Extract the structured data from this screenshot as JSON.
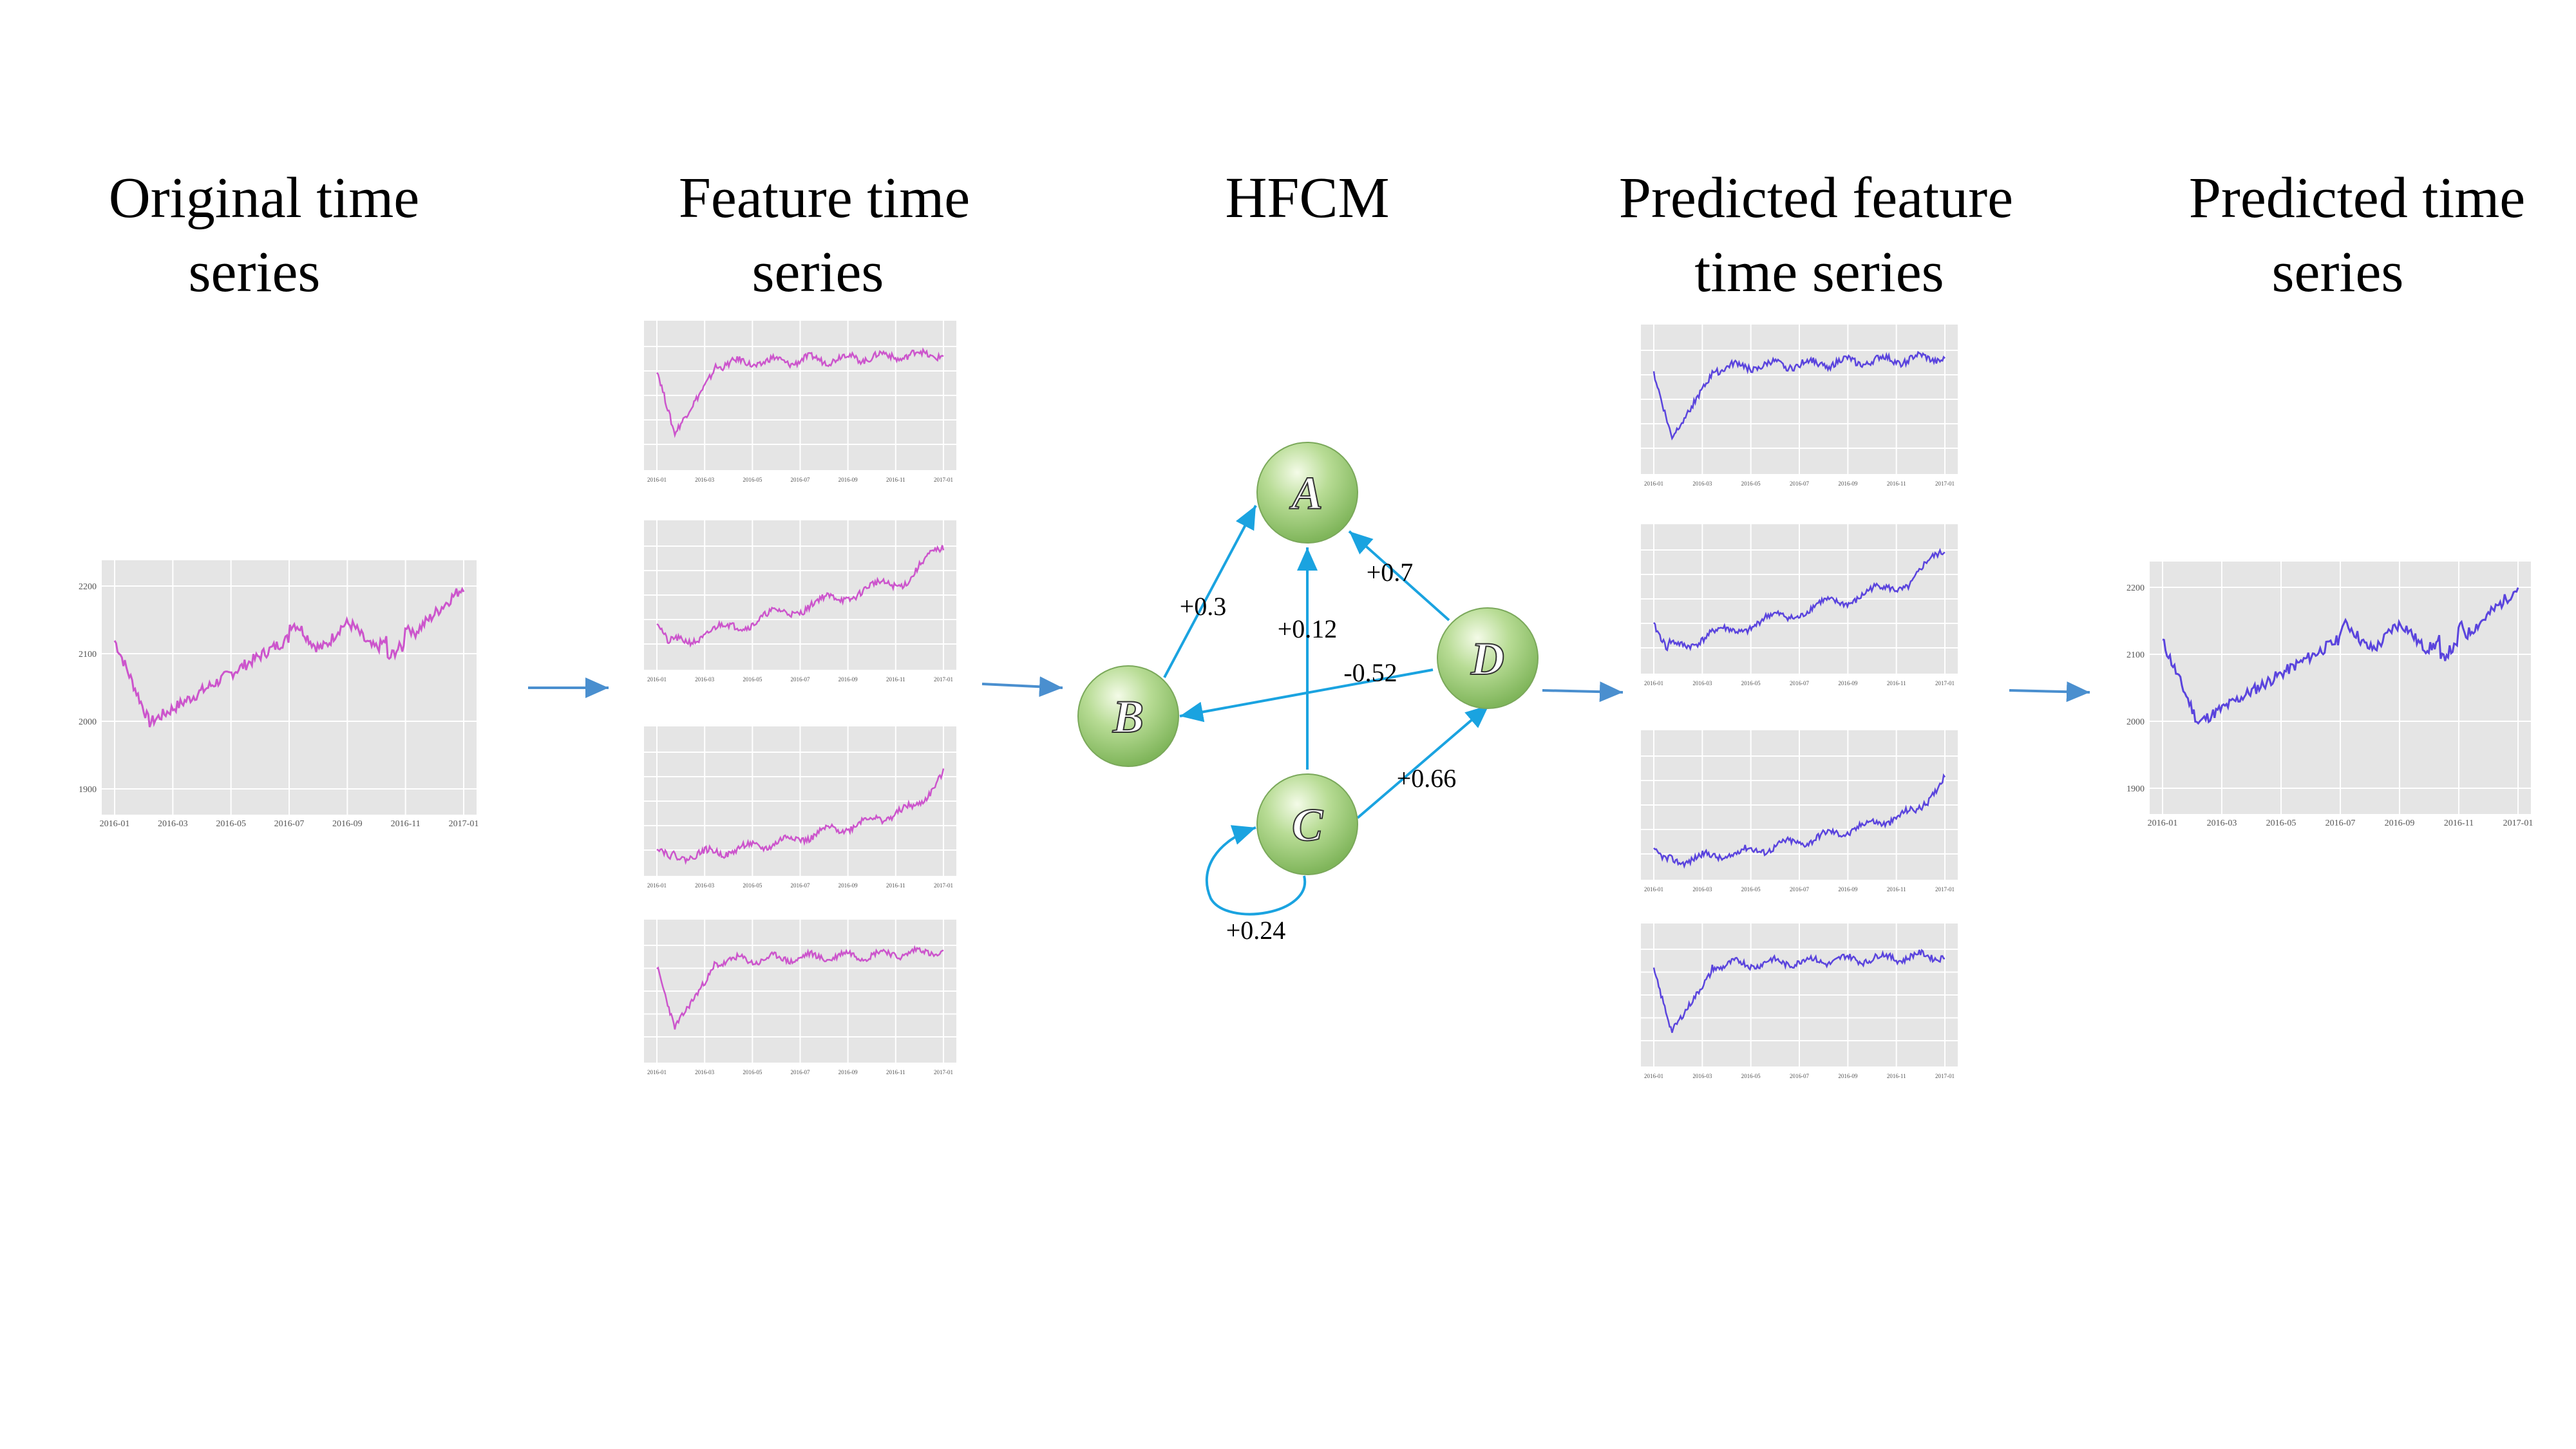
{
  "columns": [
    {
      "id": "original",
      "line1": "Original  time",
      "line2": "series"
    },
    {
      "id": "feature",
      "line1": "Feature time",
      "line2": "series"
    },
    {
      "id": "hfcm",
      "line1": "HFCM",
      "line2": ""
    },
    {
      "id": "predicted_feature",
      "line1": "Predicted  feature",
      "line2": "time series"
    },
    {
      "id": "predicted",
      "line1": "Predicted  time",
      "line2": "series"
    }
  ],
  "hfcm": {
    "nodes": [
      {
        "id": "A",
        "label": "A"
      },
      {
        "id": "B",
        "label": "B"
      },
      {
        "id": "C",
        "label": "C"
      },
      {
        "id": "D",
        "label": "D"
      }
    ],
    "edges": [
      {
        "from": "B",
        "to": "A",
        "weight": "+0.3"
      },
      {
        "from": "C",
        "to": "A",
        "weight": "+0.12"
      },
      {
        "from": "D",
        "to": "A",
        "weight": "+0.7"
      },
      {
        "from": "D",
        "to": "B",
        "weight": "-0.52"
      },
      {
        "from": "C",
        "to": "D",
        "weight": "+0.66"
      },
      {
        "from": "C",
        "to": "C",
        "weight": "+0.24"
      }
    ]
  },
  "plots": {
    "x_ticks": [
      "2016-01",
      "2016-03",
      "2016-05",
      "2016-07",
      "2016-09",
      "2016-11",
      "2017-01"
    ],
    "original": {
      "y_ticks": [
        "1900",
        "2000",
        "2100",
        "2200"
      ],
      "color": "#cc55cc"
    },
    "predicted": {
      "y_ticks": [
        "1900",
        "2000",
        "2100",
        "2200"
      ],
      "color": "#5a44dd"
    },
    "feature_colors": {
      "original": "#cc55cc",
      "predicted": "#5a44dd"
    }
  },
  "colors": {
    "arrow": "#4a8fcf",
    "edge": "#1aa3e0",
    "node_fill": "#9ccc7a",
    "grid_bg": "#e5e5e5"
  }
}
